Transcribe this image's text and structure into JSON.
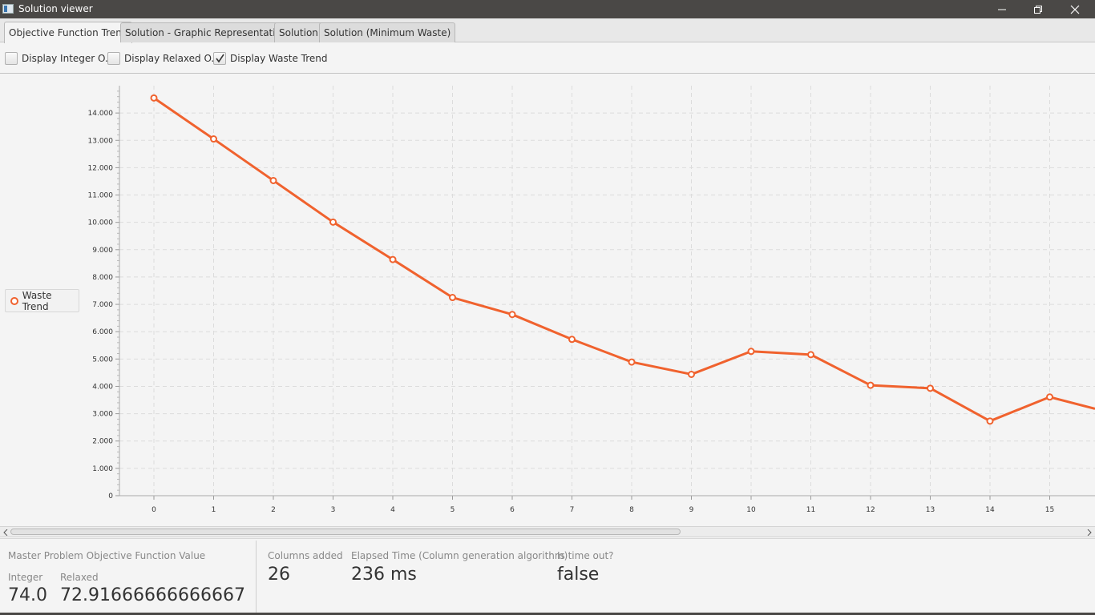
{
  "window": {
    "title": "Solution viewer",
    "controls": [
      "minimize-icon",
      "restore-icon",
      "close-icon"
    ]
  },
  "tabs": [
    {
      "label": "Objective Function Trend",
      "active": true
    },
    {
      "label": "Solution - Graphic Representation",
      "active": false
    },
    {
      "label": "Solution",
      "active": false
    },
    {
      "label": "Solution (Minimum Waste)",
      "active": false
    }
  ],
  "toolbar": {
    "integer_label": "Display Integer O.F.",
    "integer_checked": false,
    "relaxed_label": "Display Relaxed O.F.",
    "relaxed_checked": false,
    "waste_label": "Display Waste Trend",
    "waste_checked": true
  },
  "legend": {
    "label": "Waste Trend"
  },
  "colors": {
    "series": "#f0622e",
    "grid": "#dcdcdc"
  },
  "chart_data": {
    "type": "line",
    "title": "",
    "xlabel": "",
    "ylabel": "",
    "x": [
      0,
      1,
      2,
      3,
      4,
      5,
      6,
      7,
      8,
      9,
      10,
      11,
      12,
      13,
      14,
      15
    ],
    "series": [
      {
        "name": "Waste Trend",
        "values": [
          14550,
          13050,
          11530,
          10010,
          8640,
          7250,
          6630,
          5720,
          4890,
          4440,
          5280,
          5160,
          4040,
          3930,
          2730,
          3610
        ]
      }
    ],
    "xlim": [
      0,
      15
    ],
    "ylim": [
      0,
      15000
    ],
    "yticks": [
      0,
      1000,
      2000,
      3000,
      4000,
      5000,
      6000,
      7000,
      8000,
      9000,
      10000,
      11000,
      12000,
      13000,
      14000
    ],
    "ytick_labels": [
      "0",
      "1.000",
      "2.000",
      "3.000",
      "4.000",
      "5.000",
      "6.000",
      "7.000",
      "8.000",
      "9.000",
      "10.000",
      "11.000",
      "12.000",
      "13.000",
      "14.000"
    ],
    "xtick_labels": [
      "0",
      "1",
      "2",
      "3",
      "4",
      "5",
      "6",
      "7",
      "8",
      "9",
      "10",
      "11",
      "12",
      "13",
      "14",
      "15"
    ],
    "grid": true,
    "legend_position": "left"
  },
  "footer": {
    "master_title": "Master Problem Objective Function Value",
    "integer_label": "Integer",
    "integer_value": "74.0",
    "relaxed_label": "Relaxed",
    "relaxed_value": "72.91666666666667",
    "columns_label": "Columns added",
    "columns_value": "26",
    "elapsed_label": "Elapsed Time (Column generation algorithm)",
    "elapsed_value": "236 ms",
    "timeout_label": "Is time out?",
    "timeout_value": "false"
  }
}
